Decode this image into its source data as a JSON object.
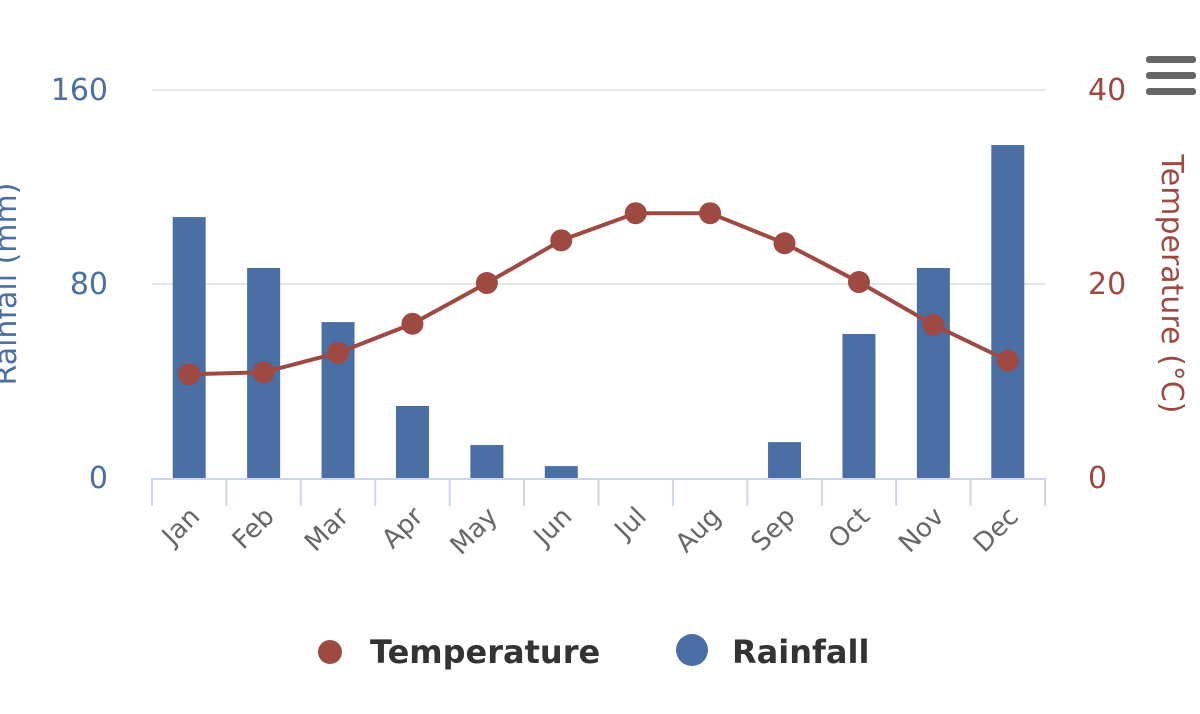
{
  "chart_data": {
    "type": "bar+line",
    "categories": [
      "Jan",
      "Feb",
      "Mar",
      "Apr",
      "May",
      "Jun",
      "Jul",
      "Aug",
      "Sep",
      "Oct",
      "Nov",
      "Dec"
    ],
    "series": [
      {
        "name": "Rainfall",
        "type": "bar",
        "axis": "left",
        "color": "#4a6fa5",
        "values": [
          107.6,
          86.6,
          64.3,
          29.7,
          13.6,
          4.9,
          0,
          0,
          14.8,
          59.4,
          86.6,
          137.3
        ]
      },
      {
        "name": "Temperature",
        "type": "line",
        "axis": "right",
        "color": "#9e4a42",
        "values": [
          10.7,
          10.9,
          12.9,
          15.9,
          20.1,
          24.5,
          27.3,
          27.3,
          24.2,
          20.2,
          15.8,
          12.1
        ]
      }
    ],
    "yaxis_left": {
      "title": "Rainfall (mm)",
      "range": [
        0,
        160
      ],
      "ticks": [
        "0",
        "80",
        "160"
      ]
    },
    "yaxis_right": {
      "title": "Temperature (°C)",
      "range": [
        0,
        40
      ],
      "ticks": [
        "0",
        "20",
        "40"
      ]
    },
    "legend": {
      "placement": "bottom-center",
      "items": [
        "Temperature",
        "Rainfall"
      ]
    },
    "grid": true
  },
  "menu_icon": "hamburger-menu-icon"
}
